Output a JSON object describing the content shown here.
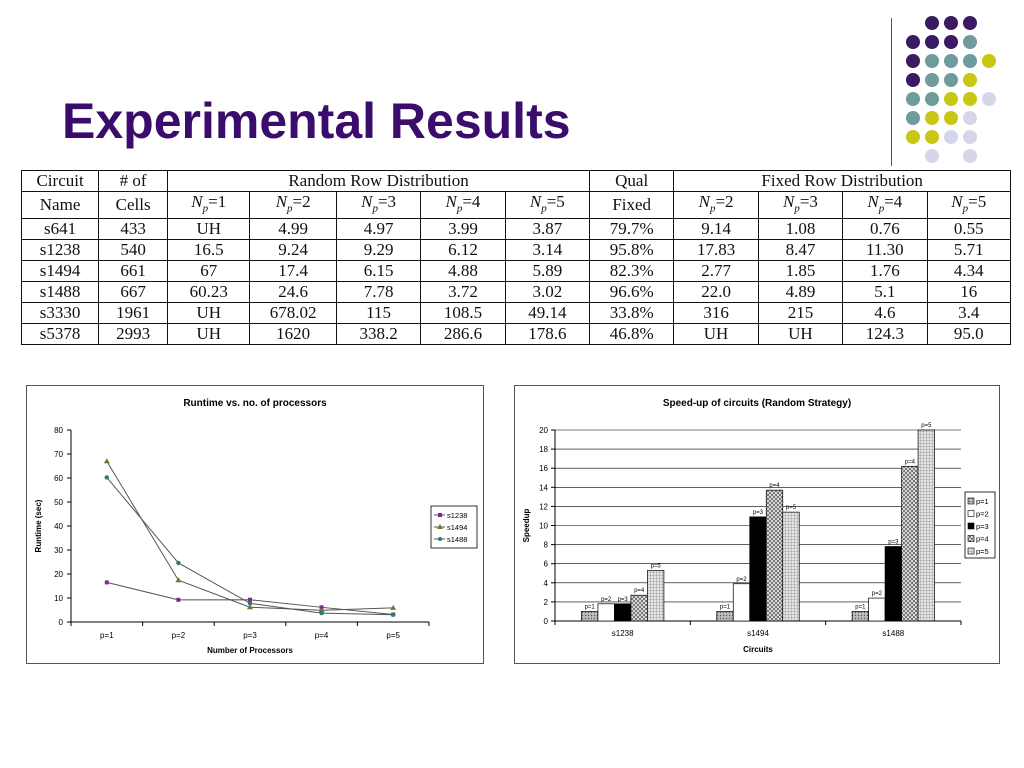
{
  "slide": {
    "title": "Experimental Results"
  },
  "decor": {
    "colors": {
      "purple": "#3a1a63",
      "teal": "#6e9b9b",
      "yellow": "#c8c814",
      "lavender": "#d6d6ea"
    }
  },
  "table": {
    "header_row1": [
      "Circuit",
      "# of",
      "Random Row Distribution",
      "Qual",
      "Fixed Row Distribution"
    ],
    "header_row2": [
      "Name",
      "Cells",
      "Fixed"
    ],
    "np_labels": [
      "=1",
      "=2",
      "=3",
      "=4",
      "=5"
    ],
    "np_symbol": "N",
    "np_sub": "p",
    "rows": [
      [
        "s641",
        "433",
        "UH",
        "4.99",
        "4.97",
        "3.99",
        "3.87",
        "79.7%",
        "9.14",
        "1.08",
        "0.76",
        "0.55"
      ],
      [
        "s1238",
        "540",
        "16.5",
        "9.24",
        "9.29",
        "6.12",
        "3.14",
        "95.8%",
        "17.83",
        "8.47",
        "11.30",
        "5.71"
      ],
      [
        "s1494",
        "661",
        "67",
        "17.4",
        "6.15",
        "4.88",
        "5.89",
        "82.3%",
        "2.77",
        "1.85",
        "1.76",
        "4.34"
      ],
      [
        "s1488",
        "667",
        "60.23",
        "24.6",
        "7.78",
        "3.72",
        "3.02",
        "96.6%",
        "22.0",
        "4.89",
        "5.1",
        "16"
      ],
      [
        "s3330",
        "1961",
        "UH",
        "678.02",
        "115",
        "108.5",
        "49.14",
        "33.8%",
        "316",
        "215",
        "4.6",
        "3.4"
      ],
      [
        "s5378",
        "2993",
        "UH",
        "1620",
        "338.2",
        "286.6",
        "178.6",
        "46.8%",
        "UH",
        "UH",
        "124.3",
        "95.0"
      ]
    ]
  },
  "chart_data": [
    {
      "type": "line",
      "title": "Runtime vs. no. of processors",
      "xlabel": "Number of Processors",
      "ylabel": "Runtime (sec)",
      "x": [
        "p=1",
        "p=2",
        "p=3",
        "p=4",
        "p=5"
      ],
      "ylim": [
        0,
        80
      ],
      "yticks": [
        0,
        10,
        20,
        30,
        40,
        50,
        60,
        70,
        80
      ],
      "legend_position": "right",
      "series": [
        {
          "name": "s1238",
          "values": [
            16.5,
            9.24,
            9.29,
            6.12,
            3.14
          ],
          "color": "#7a2a8a"
        },
        {
          "name": "s1494",
          "values": [
            67,
            17.4,
            6.15,
            4.88,
            5.89
          ],
          "color": "#6e7a2a"
        },
        {
          "name": "s1488",
          "values": [
            60.23,
            24.6,
            7.78,
            3.72,
            3.02
          ],
          "color": "#2a7a72"
        }
      ]
    },
    {
      "type": "bar",
      "title": "Speed-up of circuits (Random Strategy)",
      "xlabel": "Circuits",
      "ylabel": "Speedup",
      "categories": [
        "s1238",
        "s1494",
        "s1488"
      ],
      "ylim": [
        0,
        20
      ],
      "yticks": [
        0,
        2,
        4,
        6,
        8,
        10,
        12,
        14,
        16,
        18,
        20
      ],
      "legend_position": "right",
      "series": [
        {
          "name": "p=1",
          "values": [
            1,
            1,
            1
          ],
          "fill": "#a8a8a8"
        },
        {
          "name": "p=2",
          "values": [
            1.8,
            3.9,
            2.4
          ],
          "fill": "#ffffff"
        },
        {
          "name": "p=3",
          "values": [
            1.8,
            10.9,
            7.8
          ],
          "fill": "#000000"
        },
        {
          "name": "p=4",
          "values": [
            2.7,
            13.7,
            16.2
          ],
          "fill": "#8a8a8a"
        },
        {
          "name": "p=5",
          "values": [
            5.3,
            11.4,
            20
          ],
          "fill": "#c8c8c8"
        }
      ],
      "bar_labels": [
        [
          "p=1",
          "p=2",
          "p=3",
          "p=4",
          "p=5"
        ],
        [
          "p=1",
          "p=2",
          "p=3",
          "p=4",
          "p=5"
        ],
        [
          "p=1",
          "p=2",
          "p=3",
          "p=4",
          "p=5"
        ]
      ]
    }
  ]
}
